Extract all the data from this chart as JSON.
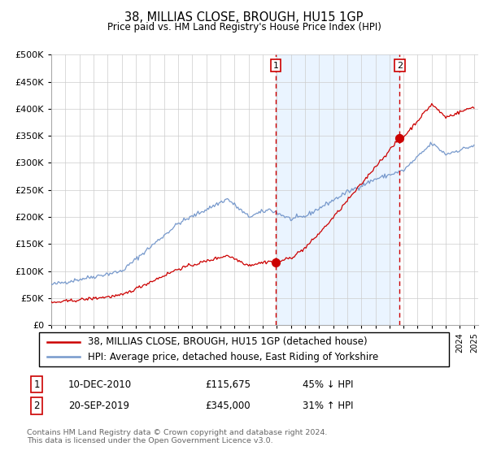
{
  "title": "38, MILLIAS CLOSE, BROUGH, HU15 1GP",
  "subtitle": "Price paid vs. HM Land Registry's House Price Index (HPI)",
  "legend_line1": "38, MILLIAS CLOSE, BROUGH, HU15 1GP (detached house)",
  "legend_line2": "HPI: Average price, detached house, East Riding of Yorkshire",
  "annotation1_label": "1",
  "annotation1_date": "10-DEC-2010",
  "annotation1_price": "£115,675",
  "annotation1_hpi": "45% ↓ HPI",
  "annotation2_label": "2",
  "annotation2_date": "20-SEP-2019",
  "annotation2_price": "£345,000",
  "annotation2_hpi": "31% ↑ HPI",
  "footnote": "Contains HM Land Registry data © Crown copyright and database right 2024.\nThis data is licensed under the Open Government Licence v3.0.",
  "hpi_color": "#7799cc",
  "price_color": "#cc0000",
  "dot_color": "#cc0000",
  "vline_color": "#cc0000",
  "bg_fill_color": "#ddeeff",
  "ylim": [
    0,
    500000
  ],
  "yticks": [
    0,
    50000,
    100000,
    150000,
    200000,
    250000,
    300000,
    350000,
    400000,
    450000,
    500000
  ],
  "year_start": 1995,
  "year_end": 2025,
  "sale1_year": 2010.92,
  "sale1_price": 115675,
  "sale2_year": 2019.72,
  "sale2_price": 345000
}
